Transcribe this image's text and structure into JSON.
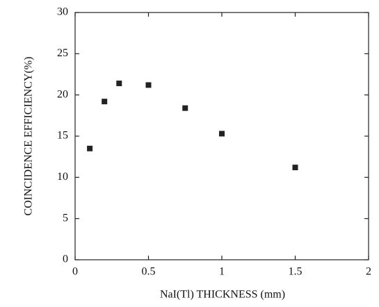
{
  "chart_data": {
    "type": "scatter",
    "x_label": "NaI(Tl) THICKNESS (mm)",
    "y_label": "COINCIDENCE EFFICIENCY(%)",
    "x": [
      0.1,
      0.2,
      0.3,
      0.5,
      0.75,
      1.0,
      1.5
    ],
    "values": [
      13.5,
      19.2,
      21.4,
      21.2,
      18.4,
      15.3,
      11.2
    ],
    "color": "#222222",
    "xlim": [
      0,
      2
    ],
    "xticks": [
      0,
      0.5,
      1,
      1.5,
      2
    ],
    "ylim": [
      0,
      30
    ],
    "yticks": [
      0,
      5,
      10,
      15,
      20,
      25,
      30
    ],
    "grid": false
  }
}
